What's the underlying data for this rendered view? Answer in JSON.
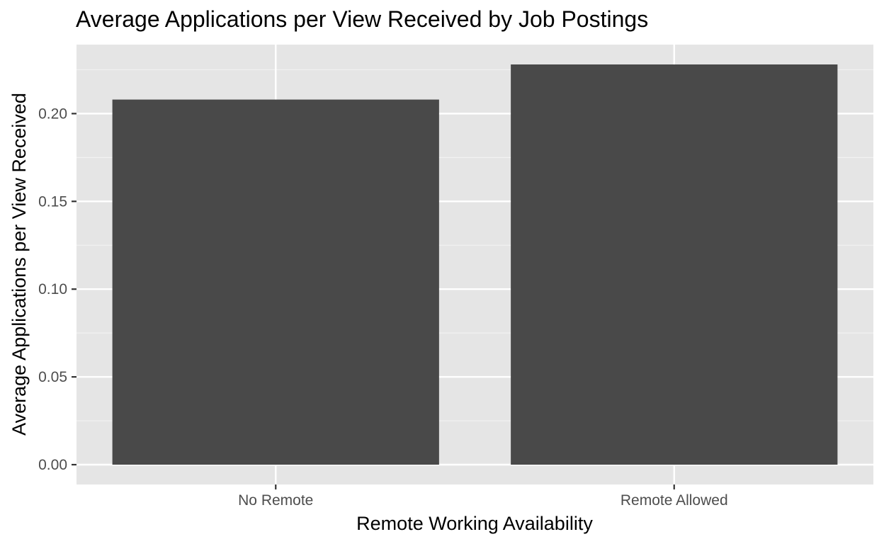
{
  "chart_data": {
    "type": "bar",
    "title": "Average Applications per View Received by Job Postings",
    "xlabel": "Remote Working Availability",
    "ylabel": "Average Applications per View Received",
    "categories": [
      "No Remote",
      "Remote Allowed"
    ],
    "values": [
      0.208,
      0.228
    ],
    "ylim": [
      -0.0113,
      0.2393
    ],
    "y_ticks": [
      0.0,
      0.05,
      0.1,
      0.15,
      0.2
    ],
    "y_tick_labels": [
      "0.00",
      "0.05",
      "0.10",
      "0.15",
      "0.20"
    ],
    "grid": true,
    "legend": "none",
    "colors": {
      "bar": "#494949",
      "panel_background": "#e5e5e5",
      "grid_major": "#ffffff",
      "grid_minor": "#f2f2f2",
      "tick_label": "#4d4d4d"
    }
  }
}
